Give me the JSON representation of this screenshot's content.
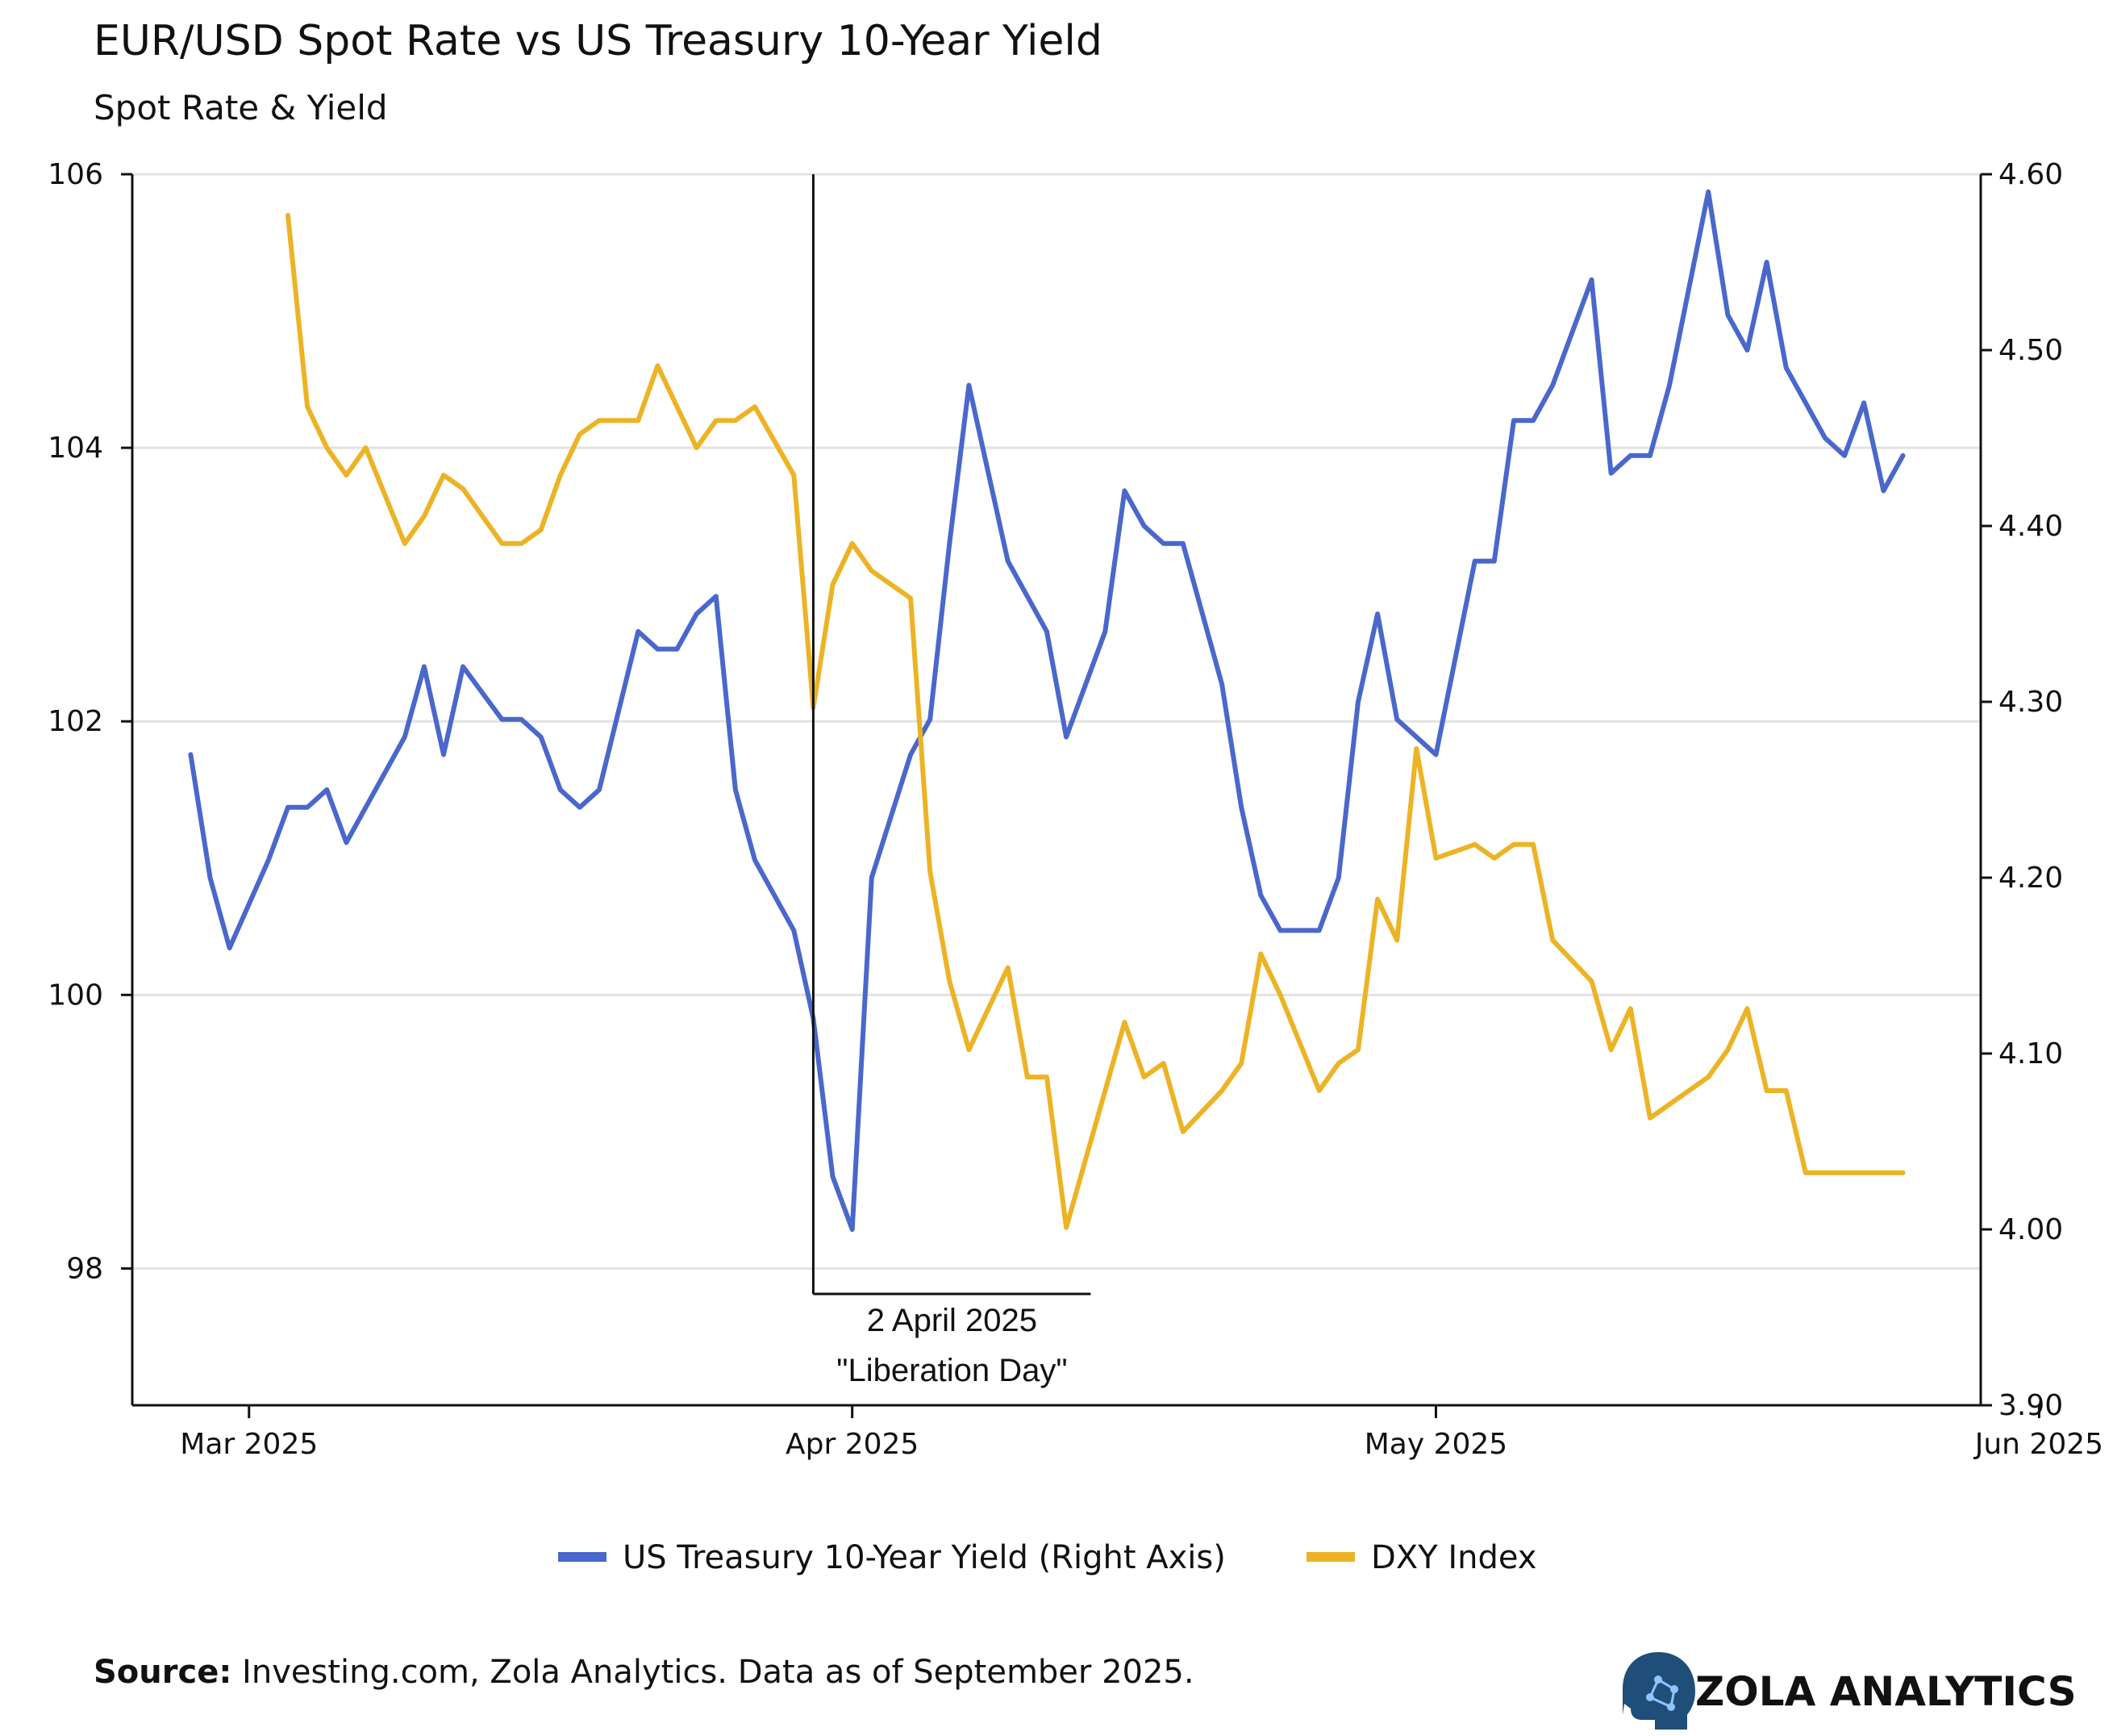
{
  "chart_data": {
    "type": "line",
    "title": "EUR/USD Spot Rate vs US Treasury 10-Year Yield",
    "subtitle": "Spot Rate & Yield",
    "x_ticks": [
      "Mar 2025",
      "Apr 2025",
      "May 2025",
      "Jun 2025"
    ],
    "x_range_days": [
      -3,
      92
    ],
    "x_tick_days": [
      3,
      34,
      64,
      95
    ],
    "left_axis": {
      "ylim": [
        97,
        106
      ],
      "ticks": [
        "98",
        "100",
        "102",
        "104",
        "106"
      ],
      "tick_values": [
        98,
        100,
        102,
        104,
        106
      ]
    },
    "right_axis": {
      "ylim": [
        3.9,
        4.6
      ],
      "ticks": [
        "3.90",
        "4.00",
        "4.10",
        "4.20",
        "4.30",
        "4.40",
        "4.50",
        "4.60"
      ],
      "tick_values": [
        3.9,
        4.0,
        4.1,
        4.2,
        4.3,
        4.4,
        4.5,
        4.6
      ]
    },
    "grid": true,
    "legend_position": "bottom",
    "annotation": {
      "day": 32,
      "line1": "2 April 2025",
      "line2": "\"Liberation Day\""
    },
    "series": [
      {
        "name": "US Treasury 10-Year Yield (Right Axis)",
        "axis": "right",
        "color": "#4A67CB",
        "x": [
          0,
          1,
          2,
          4,
          5,
          6,
          7,
          8,
          9,
          11,
          12,
          13,
          14,
          16,
          17,
          18,
          19,
          20,
          21,
          23,
          24,
          25,
          26,
          27,
          28,
          29,
          31,
          32,
          33,
          34,
          35,
          37,
          38,
          39,
          40,
          42,
          43,
          44,
          45,
          47,
          48,
          49,
          50,
          51,
          53,
          54,
          55,
          56,
          58,
          59,
          60,
          61,
          62,
          63,
          64,
          66,
          67,
          68,
          69,
          70,
          72,
          73,
          74,
          75,
          76,
          78,
          79,
          80,
          81,
          82,
          83,
          84,
          85,
          86,
          87,
          88
        ],
        "y": [
          4.27,
          4.2,
          4.16,
          4.21,
          4.24,
          4.24,
          4.25,
          4.22,
          4.24,
          4.28,
          4.32,
          4.27,
          4.32,
          4.29,
          4.29,
          4.28,
          4.25,
          4.24,
          4.25,
          4.34,
          4.33,
          4.33,
          4.35,
          4.36,
          4.25,
          4.21,
          4.17,
          4.12,
          4.03,
          4.0,
          4.2,
          4.27,
          4.29,
          4.39,
          4.48,
          4.38,
          4.36,
          4.34,
          4.28,
          4.34,
          4.42,
          4.4,
          4.39,
          4.39,
          4.31,
          4.24,
          4.19,
          4.17,
          4.17,
          4.2,
          4.3,
          4.35,
          4.29,
          4.28,
          4.27,
          4.38,
          4.38,
          4.46,
          4.46,
          4.48,
          4.54,
          4.43,
          4.44,
          4.44,
          4.48,
          4.59,
          4.52,
          4.5,
          4.55,
          4.49,
          4.47,
          4.45,
          4.44,
          4.47,
          4.42,
          4.44
        ]
      },
      {
        "name": "DXY Index",
        "axis": "left",
        "color": "#ECB325",
        "x": [
          5,
          6,
          7,
          8,
          9,
          11,
          12,
          13,
          14,
          16,
          17,
          18,
          19,
          20,
          21,
          23,
          24,
          25,
          26,
          27,
          28,
          29,
          31,
          32,
          33,
          34,
          35,
          37,
          38,
          39,
          40,
          42,
          43,
          44,
          45,
          47,
          48,
          49,
          50,
          51,
          53,
          54,
          55,
          56,
          58,
          59,
          60,
          61,
          62,
          63,
          64,
          66,
          67,
          68,
          69,
          70,
          72,
          73,
          74,
          75,
          76,
          78,
          79,
          80,
          81,
          82,
          83,
          84,
          85,
          86,
          87,
          88
        ],
        "y": [
          105.7,
          104.3,
          104.0,
          103.8,
          104.0,
          103.3,
          103.5,
          103.8,
          103.7,
          103.3,
          103.3,
          103.4,
          103.8,
          104.1,
          104.2,
          104.2,
          104.6,
          104.3,
          104.0,
          104.2,
          104.2,
          104.3,
          103.8,
          102.1,
          103.0,
          103.3,
          103.1,
          102.9,
          100.9,
          100.1,
          99.6,
          100.2,
          99.4,
          99.4,
          98.3,
          99.3,
          99.8,
          99.4,
          99.5,
          99.0,
          99.3,
          99.5,
          100.3,
          100.0,
          99.3,
          99.5,
          99.6,
          100.7,
          100.4,
          101.8,
          101.0,
          101.1,
          101.0,
          101.1,
          101.1,
          100.4,
          100.1,
          99.6,
          99.9,
          99.1,
          99.2,
          99.4,
          99.6,
          99.9,
          99.3,
          99.3,
          98.7,
          98.7,
          98.7,
          98.7,
          98.7,
          98.7
        ]
      }
    ]
  },
  "source": {
    "label": "Source:",
    "text": " Investing.com, Zola Analytics. Data as of September 2025."
  },
  "brand": {
    "name": "ZOLA ANALYTICS",
    "icon": "brain-head-icon",
    "icon_color": "#1f4e79"
  }
}
